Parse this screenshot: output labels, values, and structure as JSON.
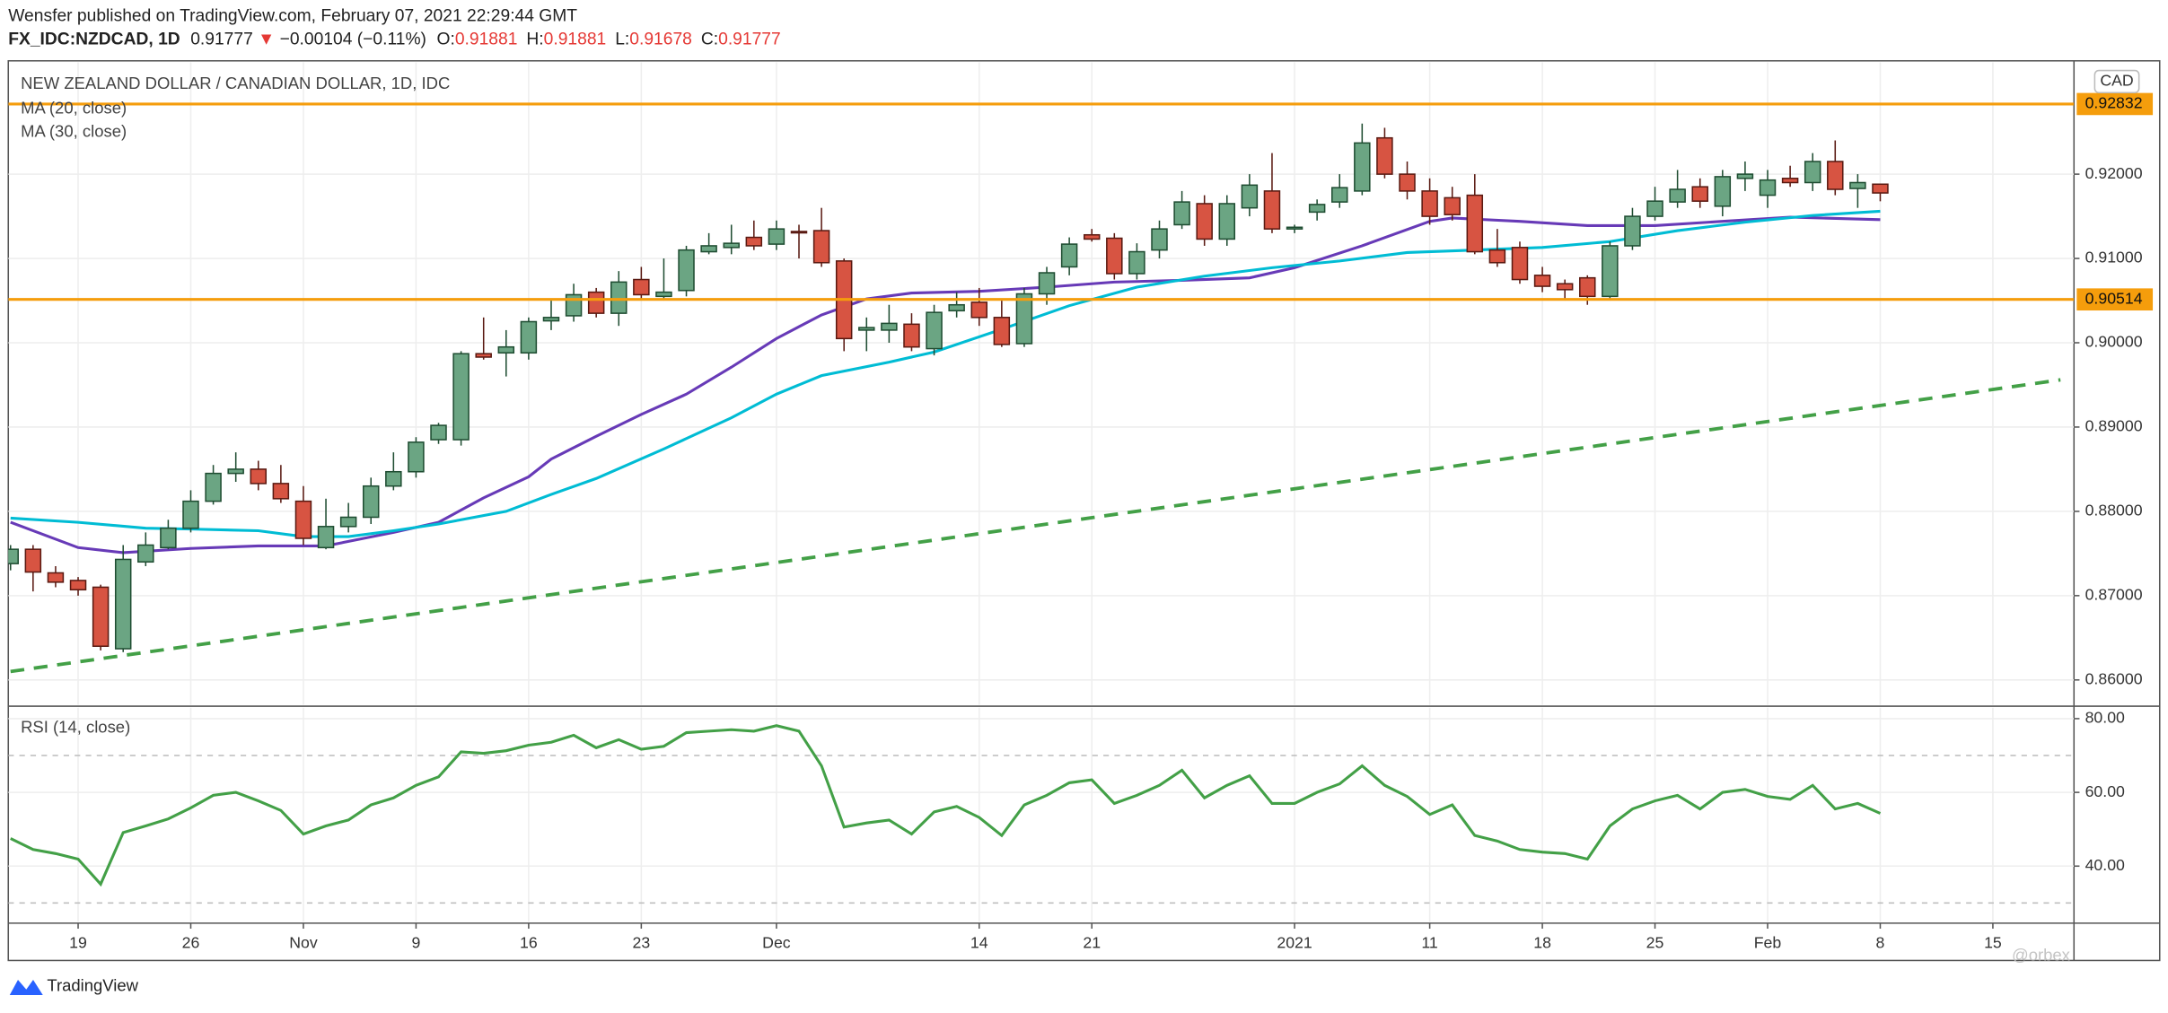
{
  "header": {
    "publisher": "Wensfer published on TradingView.com, February 07, 2021 22:29:44 GMT",
    "symbol": "FX_IDC:NZDCAD, 1D",
    "last": "0.91777",
    "arrow": "▼",
    "change": "−0.00104 (−0.11%)",
    "ohlc": [
      {
        "label": "O:",
        "value": "0.91881"
      },
      {
        "label": "H:",
        "value": "0.91881"
      },
      {
        "label": "L:",
        "value": "0.91678"
      },
      {
        "label": "C:",
        "value": "0.91777"
      }
    ]
  },
  "footer": {
    "brand": "TradingView",
    "watermark": "@orbex"
  },
  "chart_data": [
    {
      "type": "candlestick",
      "title": "NEW ZEALAND DOLLAR / CANADIAN DOLLAR, 1D, IDC",
      "currency": "CAD",
      "up_color": "#6ba583",
      "down_color": "#d75442",
      "open": [
        0.8738,
        0.8755,
        0.8727,
        0.8718,
        0.871,
        0.8637,
        0.874,
        0.8757,
        0.878,
        0.8812,
        0.8845,
        0.885,
        0.8833,
        0.8812,
        0.8757,
        0.8782,
        0.8793,
        0.883,
        0.8847,
        0.8885,
        0.8885,
        0.8987,
        0.8988,
        0.8988,
        0.9026,
        0.9032,
        0.906,
        0.9035,
        0.9075,
        0.9055,
        0.9062,
        0.9108,
        0.9113,
        0.9125,
        0.9117,
        0.9132,
        0.9133,
        0.9097,
        0.9015,
        0.9015,
        0.9022,
        0.8993,
        0.9038,
        0.9048,
        0.903,
        0.8999,
        0.9058,
        0.909,
        0.9128,
        0.9124,
        0.9082,
        0.911,
        0.914,
        0.9165,
        0.9123,
        0.916,
        0.918,
        0.9135,
        0.9155,
        0.9167,
        0.918,
        0.9243,
        0.92,
        0.918,
        0.9172,
        0.9175,
        0.911,
        0.9113,
        0.908,
        0.907,
        0.9077,
        0.9055,
        0.9115,
        0.915,
        0.9167,
        0.9185,
        0.9162,
        0.9195,
        0.9175,
        0.9195,
        0.919,
        0.9215,
        0.9183,
        0.91881
      ],
      "high": [
        0.876,
        0.876,
        0.8735,
        0.8722,
        0.8713,
        0.876,
        0.8775,
        0.879,
        0.8825,
        0.8855,
        0.887,
        0.886,
        0.8855,
        0.883,
        0.8815,
        0.881,
        0.884,
        0.887,
        0.8888,
        0.8905,
        0.899,
        0.903,
        0.9015,
        0.903,
        0.905,
        0.907,
        0.9065,
        0.9085,
        0.909,
        0.91,
        0.9115,
        0.913,
        0.914,
        0.9145,
        0.9145,
        0.914,
        0.916,
        0.91,
        0.903,
        0.9045,
        0.9035,
        0.9045,
        0.906,
        0.9065,
        0.905,
        0.9065,
        0.909,
        0.9125,
        0.9135,
        0.913,
        0.9118,
        0.9145,
        0.918,
        0.9175,
        0.9175,
        0.92,
        0.9225,
        0.914,
        0.917,
        0.92,
        0.926,
        0.9255,
        0.9215,
        0.9195,
        0.9185,
        0.92,
        0.9135,
        0.912,
        0.909,
        0.9075,
        0.908,
        0.912,
        0.916,
        0.9185,
        0.9205,
        0.9195,
        0.9205,
        0.9215,
        0.9205,
        0.921,
        0.9225,
        0.924,
        0.92,
        0.91881
      ],
      "low": [
        0.873,
        0.8705,
        0.871,
        0.87,
        0.8635,
        0.8633,
        0.8735,
        0.8755,
        0.8775,
        0.8808,
        0.8835,
        0.8825,
        0.881,
        0.876,
        0.8755,
        0.8775,
        0.8785,
        0.8825,
        0.884,
        0.888,
        0.8878,
        0.898,
        0.896,
        0.898,
        0.9015,
        0.9025,
        0.903,
        0.902,
        0.905,
        0.905,
        0.9055,
        0.9105,
        0.9105,
        0.911,
        0.911,
        0.91,
        0.909,
        0.899,
        0.899,
        0.9,
        0.899,
        0.8985,
        0.903,
        0.902,
        0.8995,
        0.8995,
        0.9045,
        0.908,
        0.912,
        0.9075,
        0.9075,
        0.91,
        0.9135,
        0.9115,
        0.9115,
        0.915,
        0.913,
        0.913,
        0.9145,
        0.916,
        0.9175,
        0.9195,
        0.917,
        0.914,
        0.9145,
        0.9105,
        0.909,
        0.907,
        0.906,
        0.905,
        0.9045,
        0.905,
        0.911,
        0.9145,
        0.916,
        0.916,
        0.915,
        0.918,
        0.916,
        0.9185,
        0.918,
        0.9175,
        0.916,
        0.91678
      ],
      "close": [
        0.8755,
        0.8728,
        0.8716,
        0.8707,
        0.864,
        0.8743,
        0.876,
        0.878,
        0.8812,
        0.8845,
        0.885,
        0.8833,
        0.8815,
        0.8768,
        0.8782,
        0.8793,
        0.883,
        0.8847,
        0.8882,
        0.8902,
        0.8987,
        0.8983,
        0.8995,
        0.9025,
        0.903,
        0.9057,
        0.9035,
        0.9072,
        0.9057,
        0.906,
        0.911,
        0.9115,
        0.9118,
        0.9115,
        0.9135,
        0.9131,
        0.9095,
        0.9005,
        0.9018,
        0.9023,
        0.8995,
        0.9036,
        0.9045,
        0.903,
        0.8998,
        0.9058,
        0.9083,
        0.9117,
        0.9123,
        0.9082,
        0.9108,
        0.9135,
        0.9167,
        0.9123,
        0.9165,
        0.9187,
        0.9135,
        0.9137,
        0.9164,
        0.9184,
        0.9237,
        0.92,
        0.918,
        0.915,
        0.9152,
        0.9108,
        0.9095,
        0.9075,
        0.9067,
        0.9063,
        0.9055,
        0.9115,
        0.915,
        0.9168,
        0.9182,
        0.9168,
        0.9197,
        0.92,
        0.9193,
        0.919,
        0.9215,
        0.9182,
        0.919,
        0.91777
      ],
      "series": [
        {
          "name": "MA (20, close)",
          "color": "#673ab7",
          "x": [
            0,
            3,
            5,
            8,
            11,
            14,
            17,
            19,
            21,
            23,
            24,
            26,
            28,
            30,
            32,
            34,
            36,
            38,
            40,
            43,
            46,
            49,
            52,
            55,
            57,
            60,
            63,
            64,
            67,
            70,
            73,
            76,
            79,
            83
          ],
          "values": [
            0.8787,
            0.8757,
            0.8751,
            0.8756,
            0.8759,
            0.8759,
            0.8775,
            0.8787,
            0.8816,
            0.8841,
            0.8862,
            0.8889,
            0.8915,
            0.8939,
            0.8971,
            0.9005,
            0.9033,
            0.9052,
            0.9059,
            0.9061,
            0.9066,
            0.9072,
            0.9074,
            0.9077,
            0.9089,
            0.9115,
            0.9144,
            0.9148,
            0.9144,
            0.9139,
            0.9139,
            0.9144,
            0.9149,
            0.9146
          ]
        },
        {
          "name": "MA (30, close)",
          "color": "#00bcd4",
          "x": [
            0,
            3,
            6,
            8,
            11,
            13,
            15,
            17,
            19,
            22,
            24,
            26,
            29,
            32,
            34,
            36,
            39,
            41,
            44,
            47,
            50,
            53,
            56,
            59,
            62,
            65,
            68,
            71,
            74,
            77,
            80,
            83
          ],
          "values": [
            0.8792,
            0.8787,
            0.878,
            0.8779,
            0.8777,
            0.877,
            0.877,
            0.8777,
            0.8785,
            0.88,
            0.882,
            0.8839,
            0.8874,
            0.8911,
            0.8939,
            0.8961,
            0.8977,
            0.8989,
            0.9016,
            0.9044,
            0.9066,
            0.9079,
            0.9089,
            0.9097,
            0.9107,
            0.911,
            0.9113,
            0.912,
            0.9133,
            0.9143,
            0.9151,
            0.9156
          ]
        }
      ],
      "trendline": {
        "color": "#43a047",
        "x": [
          0,
          91
        ],
        "values": [
          0.861,
          0.8956
        ]
      },
      "hlines": [
        {
          "value": 0.92832,
          "label": "0.92832",
          "color": "#f59d0c"
        },
        {
          "value": 0.90514,
          "label": "0.90514",
          "color": "#f59d0c"
        }
      ],
      "xlim": [
        -0.1,
        91.6
      ],
      "xticks": [
        {
          "value": 3,
          "label": "19"
        },
        {
          "value": 8,
          "label": "26"
        },
        {
          "value": 13,
          "label": "Nov"
        },
        {
          "value": 18,
          "label": "9"
        },
        {
          "value": 23,
          "label": "16"
        },
        {
          "value": 28,
          "label": "23"
        },
        {
          "value": 34,
          "label": "Dec"
        },
        {
          "value": 43,
          "label": "14"
        },
        {
          "value": 48,
          "label": "21"
        },
        {
          "value": 57,
          "label": "2021"
        },
        {
          "value": 63,
          "label": "11"
        },
        {
          "value": 68,
          "label": "18"
        },
        {
          "value": 73,
          "label": "25"
        },
        {
          "value": 78,
          "label": "Feb"
        },
        {
          "value": 83,
          "label": "8"
        },
        {
          "value": 88,
          "label": "15"
        }
      ],
      "ylim": [
        0.85705,
        0.93328
      ],
      "yticks": [
        {
          "value": 0.86,
          "label": "0.86000"
        },
        {
          "value": 0.87,
          "label": "0.87000"
        },
        {
          "value": 0.88,
          "label": "0.88000"
        },
        {
          "value": 0.89,
          "label": "0.89000"
        },
        {
          "value": 0.9,
          "label": "0.90000"
        },
        {
          "value": 0.91,
          "label": "0.91000"
        },
        {
          "value": 0.92,
          "label": "0.92000"
        }
      ],
      "grid": true
    },
    {
      "type": "line",
      "title": "RSI (14, close)",
      "color": "#43a047",
      "values": [
        47.5,
        44.5,
        43.4,
        41.9,
        35.1,
        49.1,
        50.9,
        52.8,
        55.8,
        59.2,
        60,
        57.7,
        55.1,
        48.7,
        50.9,
        52.5,
        56.6,
        58.5,
        61.9,
        64.2,
        71,
        70.6,
        71.3,
        72.8,
        73.6,
        75.5,
        72.1,
        74.3,
        71.7,
        72.5,
        76.2,
        76.6,
        77,
        76.6,
        78.1,
        76.6,
        67.2,
        50.6,
        51.7,
        52.5,
        48.7,
        54.7,
        56.2,
        53.2,
        48.3,
        56.6,
        59.2,
        62.6,
        63.4,
        57,
        59.2,
        61.9,
        66,
        58.5,
        61.9,
        64.5,
        57,
        57,
        60,
        62.3,
        67.2,
        61.9,
        58.9,
        54,
        56.6,
        48.3,
        46.8,
        44.5,
        43.8,
        43.4,
        41.9,
        50.9,
        55.5,
        57.7,
        59.2,
        55.5,
        60,
        60.8,
        58.9,
        58.1,
        61.9,
        55.5,
        57,
        54.3
      ],
      "bands": [
        70,
        30
      ],
      "ylim": [
        24.9,
        83
      ],
      "yticks": [
        {
          "value": 40,
          "label": "40.00"
        },
        {
          "value": 60,
          "label": "60.00"
        },
        {
          "value": 80,
          "label": "80.00"
        }
      ],
      "grid": true
    }
  ]
}
